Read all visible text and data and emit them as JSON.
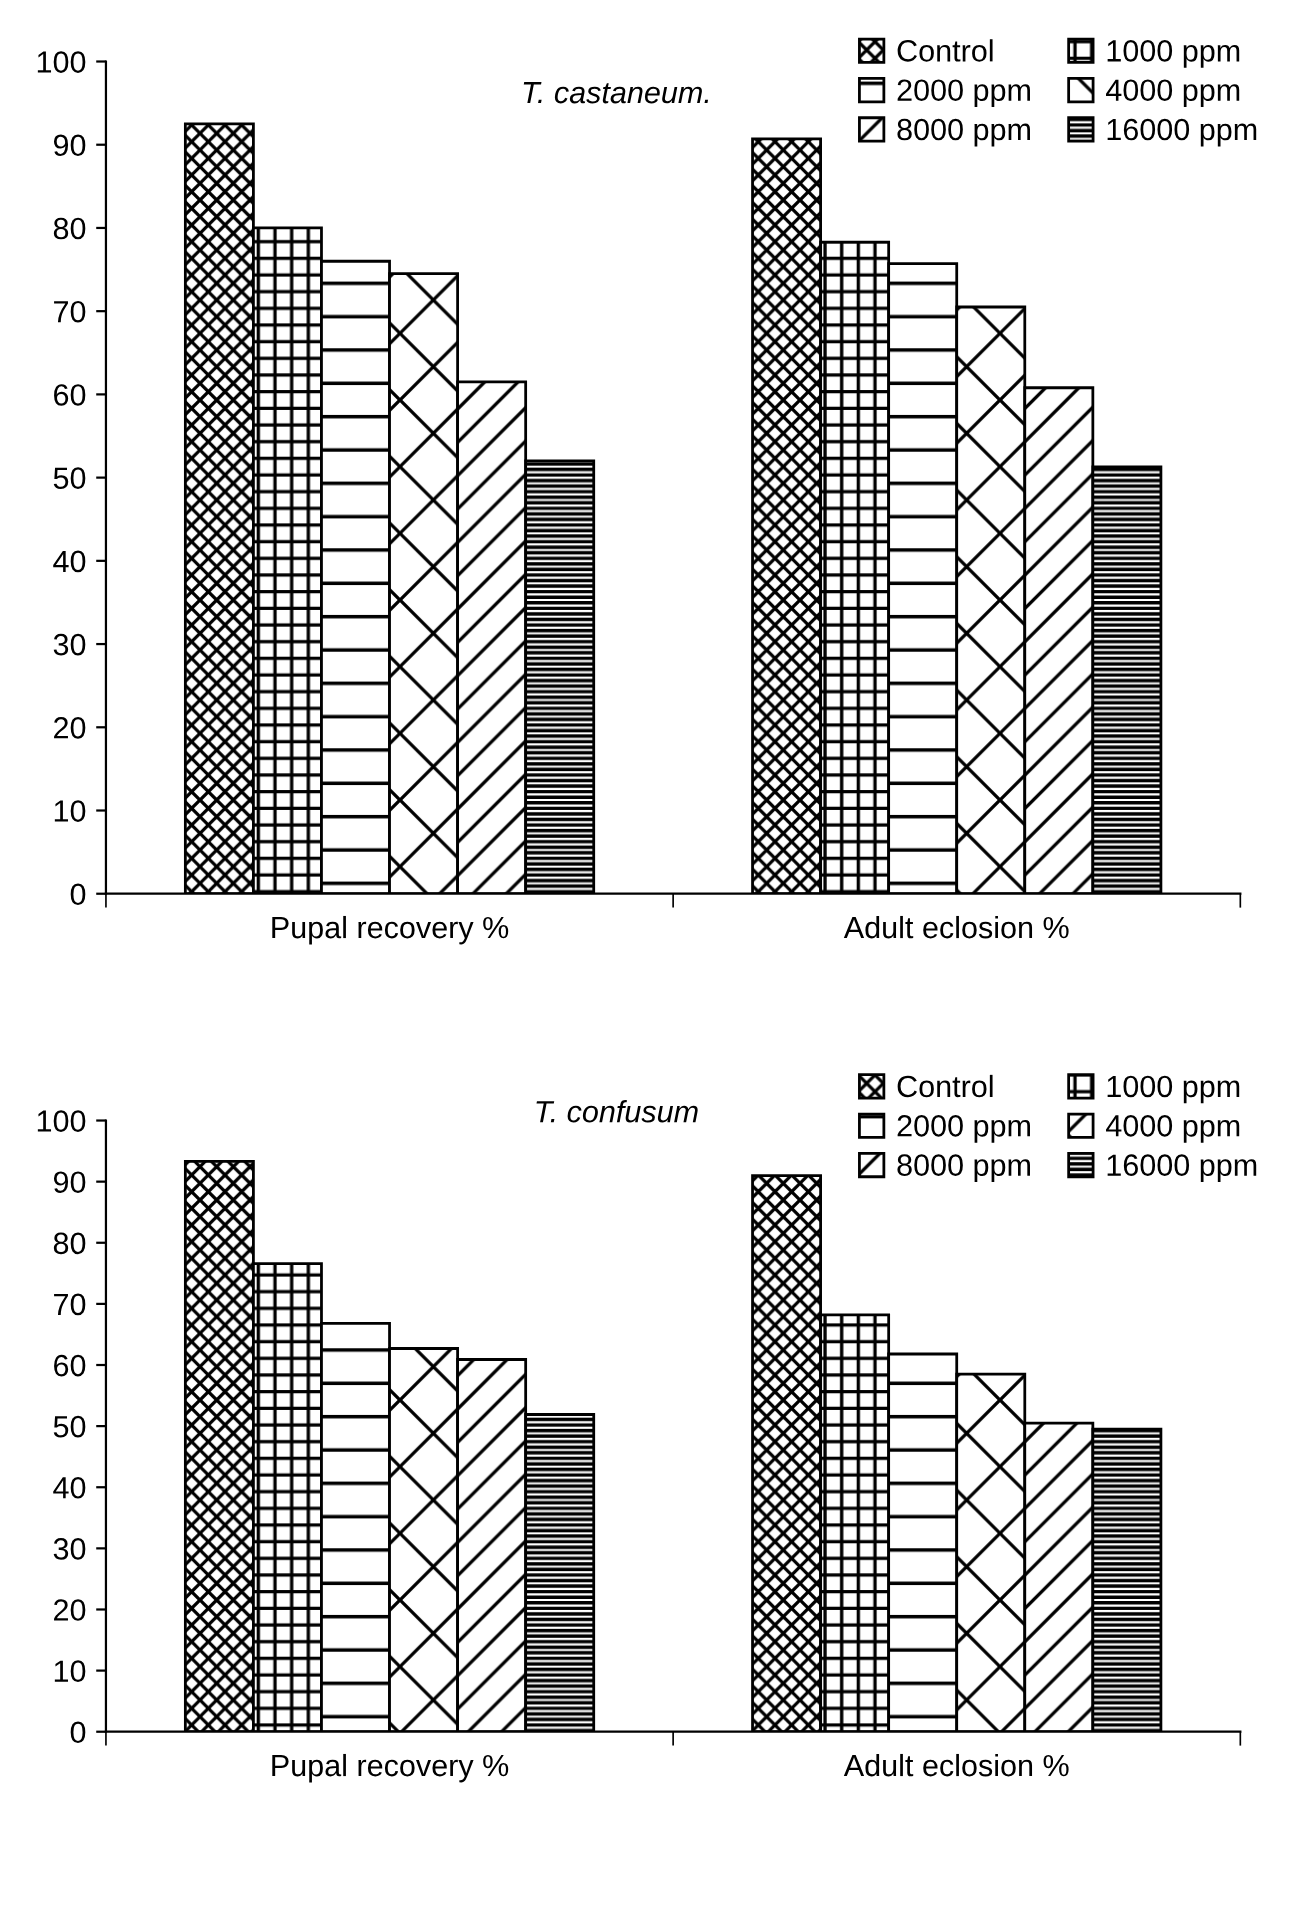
{
  "chart_data": [
    {
      "type": "bar",
      "title": "T. castaneum.",
      "categories": [
        "Pupal recovery %",
        "Adult eclosion %"
      ],
      "ylim": [
        0,
        100
      ],
      "yticks": [
        0,
        10,
        20,
        30,
        40,
        50,
        60,
        70,
        80,
        90,
        100
      ],
      "grid": false,
      "legend": "top right",
      "series": [
        {
          "name": "Control",
          "color": "#000000",
          "values": [
            92.5,
            90.7
          ]
        },
        {
          "name": "1000 ppm",
          "color": "#000000",
          "values": [
            80,
            78.3
          ]
        },
        {
          "name": "2000 ppm",
          "color": "#000000",
          "values": [
            76,
            75.7
          ]
        },
        {
          "name": "4000 ppm",
          "color": "#000000",
          "values": [
            74.5,
            70.5
          ]
        },
        {
          "name": "8000 ppm",
          "color": "#000000",
          "values": [
            61.5,
            60.8
          ]
        },
        {
          "name": "16000 ppm",
          "color": "#000000",
          "values": [
            52,
            51.3
          ]
        }
      ]
    },
    {
      "type": "bar",
      "title": "T. confusum",
      "categories": [
        "Pupal recovery %",
        "Adult eclosion %"
      ],
      "ylim": [
        0,
        100
      ],
      "yticks": [
        0,
        10,
        20,
        30,
        40,
        50,
        60,
        70,
        80,
        90,
        100
      ],
      "grid": false,
      "legend": "top right",
      "series": [
        {
          "name": "Control",
          "color": "#000000",
          "values": [
            93.3,
            91
          ]
        },
        {
          "name": "1000 ppm",
          "color": "#000000",
          "values": [
            76.6,
            68.2
          ]
        },
        {
          "name": "2000 ppm",
          "color": "#000000",
          "values": [
            66.8,
            61.8
          ]
        },
        {
          "name": "4000 ppm",
          "color": "#000000",
          "values": [
            62.7,
            58.5
          ]
        },
        {
          "name": "8000 ppm",
          "color": "#000000",
          "values": [
            60.9,
            50.5
          ]
        },
        {
          "name": "16000 ppm",
          "color": "#000000",
          "values": [
            51.9,
            49.5
          ]
        }
      ]
    }
  ]
}
